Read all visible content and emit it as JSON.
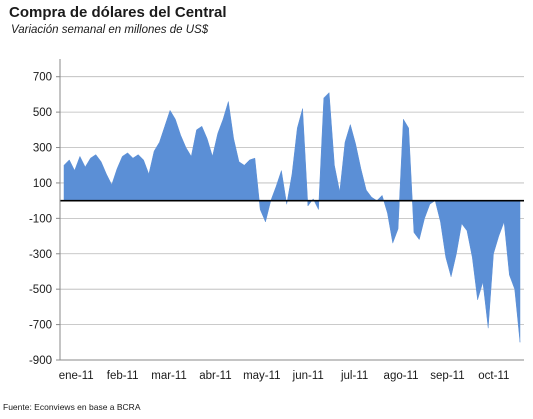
{
  "title": "Compra de dólares del Central",
  "subtitle": "Variación semanal en millones de US$",
  "source": "Fuente: Econviews en base a BCRA",
  "chart_data": {
    "type": "area",
    "title": "Compra de dólares del Central",
    "subtitle": "Variación semanal en millones de US$",
    "xlabel": "",
    "ylabel": "",
    "ylim": [
      -900,
      800
    ],
    "yticks": [
      700,
      500,
      300,
      100,
      -100,
      -300,
      -500,
      -700,
      -900
    ],
    "ytick_labels": [
      "700",
      "500",
      "300",
      "100",
      "-100",
      "-300",
      "-500",
      "-700",
      "-900"
    ],
    "xtick_labels": [
      "ene-11",
      "feb-11",
      "mar-11",
      "abr-11",
      "may-11",
      "jun-11",
      "jul-11",
      "ago-11",
      "sep-11",
      "oct-11"
    ],
    "grid": true,
    "color": "#5b8fd6",
    "x": [
      "01-03",
      "01-06",
      "01-10",
      "01-13",
      "01-17",
      "01-20",
      "01-24",
      "01-27",
      "01-31",
      "02-03",
      "02-07",
      "02-10",
      "02-14",
      "02-17",
      "02-21",
      "02-24",
      "02-28",
      "03-03",
      "03-07",
      "03-10",
      "03-14",
      "03-17",
      "03-21",
      "03-24",
      "03-28",
      "03-31",
      "04-04",
      "04-07",
      "04-11",
      "04-14",
      "04-18",
      "04-21",
      "04-25",
      "04-28",
      "05-02",
      "05-05",
      "05-09",
      "05-12",
      "05-16",
      "05-19",
      "05-23",
      "05-26",
      "05-30",
      "06-02",
      "06-06",
      "06-09",
      "06-13",
      "06-16",
      "06-20",
      "06-23",
      "06-27",
      "06-30",
      "07-04",
      "07-07",
      "07-11",
      "07-14",
      "07-18",
      "07-21",
      "07-25",
      "07-28",
      "08-01",
      "08-04",
      "08-08",
      "08-11",
      "08-15",
      "08-18",
      "08-22",
      "08-25",
      "08-29",
      "09-01",
      "09-05",
      "09-08",
      "09-12",
      "09-15",
      "09-19",
      "09-22",
      "09-26",
      "09-29",
      "10-03",
      "10-06",
      "10-10",
      "10-13",
      "10-17",
      "10-20",
      "10-24",
      "10-27",
      "10-31"
    ],
    "series": [
      {
        "values": [
          200,
          230,
          170,
          250,
          190,
          240,
          260,
          220,
          150,
          90,
          180,
          250,
          270,
          240,
          260,
          230,
          150,
          280,
          330,
          420,
          510,
          460,
          370,
          300,
          250,
          400,
          420,
          350,
          250,
          380,
          460,
          560,
          350,
          220,
          200,
          230,
          240,
          -50,
          -120,
          0,
          80,
          170,
          -20,
          150,
          410,
          520,
          -30,
          10,
          -50,
          580,
          610,
          200,
          50,
          330,
          430,
          320,
          180,
          60,
          20,
          0,
          30,
          -70,
          -240,
          -160,
          460,
          410,
          -180,
          -220,
          -100,
          -20,
          0,
          -120,
          -320,
          -430,
          -300,
          -130,
          -170,
          -320,
          -560,
          -460,
          -720,
          -300,
          -200,
          -120,
          -420,
          -500,
          -800
        ]
      }
    ]
  }
}
